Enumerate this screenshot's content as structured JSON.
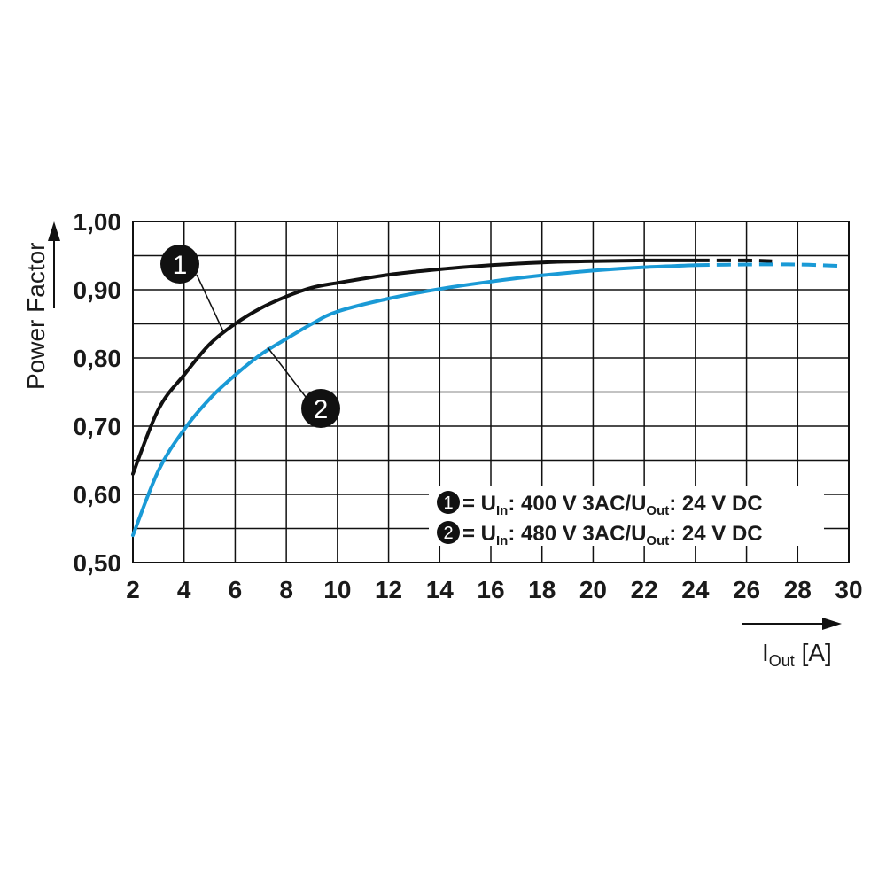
{
  "chart_data": {
    "type": "line",
    "ylabel": "Power Factor",
    "xlabel_main": "I",
    "xlabel_sub": "Out",
    "xlabel_unit": " [A]",
    "xlim": [
      2,
      30
    ],
    "ylim": [
      0.5,
      1.0
    ],
    "x_ticks": [
      "2",
      "4",
      "6",
      "8",
      "10",
      "12",
      "14",
      "16",
      "18",
      "20",
      "22",
      "24",
      "26",
      "28",
      "30"
    ],
    "y_ticks": [
      "0,50",
      "0,60",
      "0,70",
      "0,80",
      "0,90",
      "1,00"
    ],
    "grid": true,
    "series": [
      {
        "name": "1",
        "color": "#111111",
        "x": [
          2,
          3,
          4,
          5,
          6,
          7,
          8,
          9,
          10,
          12,
          14,
          16,
          18,
          20,
          22,
          24,
          26,
          27
        ],
        "y": [
          0.63,
          0.725,
          0.775,
          0.82,
          0.85,
          0.873,
          0.89,
          0.903,
          0.91,
          0.922,
          0.93,
          0.936,
          0.94,
          0.942,
          0.943,
          0.943,
          0.943,
          0.942
        ],
        "solid_until": 24
      },
      {
        "name": "2",
        "color": "#1a9ad6",
        "x": [
          2,
          3,
          4,
          5,
          6,
          7,
          8,
          9,
          10,
          12,
          14,
          16,
          18,
          20,
          22,
          24,
          26,
          28,
          29.6
        ],
        "y": [
          0.54,
          0.635,
          0.695,
          0.74,
          0.775,
          0.805,
          0.828,
          0.85,
          0.868,
          0.887,
          0.901,
          0.912,
          0.921,
          0.928,
          0.933,
          0.936,
          0.937,
          0.937,
          0.935
        ],
        "solid_until": 24
      }
    ],
    "legend": [
      {
        "num": "1",
        "eq": " = U",
        "sub": "In",
        "mid": ": 400 V 3AC/U",
        "sub2": "Out",
        "end": ": 24 V DC"
      },
      {
        "num": "2",
        "eq": " = U",
        "sub": "In",
        "mid": ": 480 V 3AC/U",
        "sub2": "Out",
        "end": ": 24 V DC"
      }
    ],
    "legend_placement": "bottom-right",
    "markers": [
      "1",
      "2"
    ]
  }
}
